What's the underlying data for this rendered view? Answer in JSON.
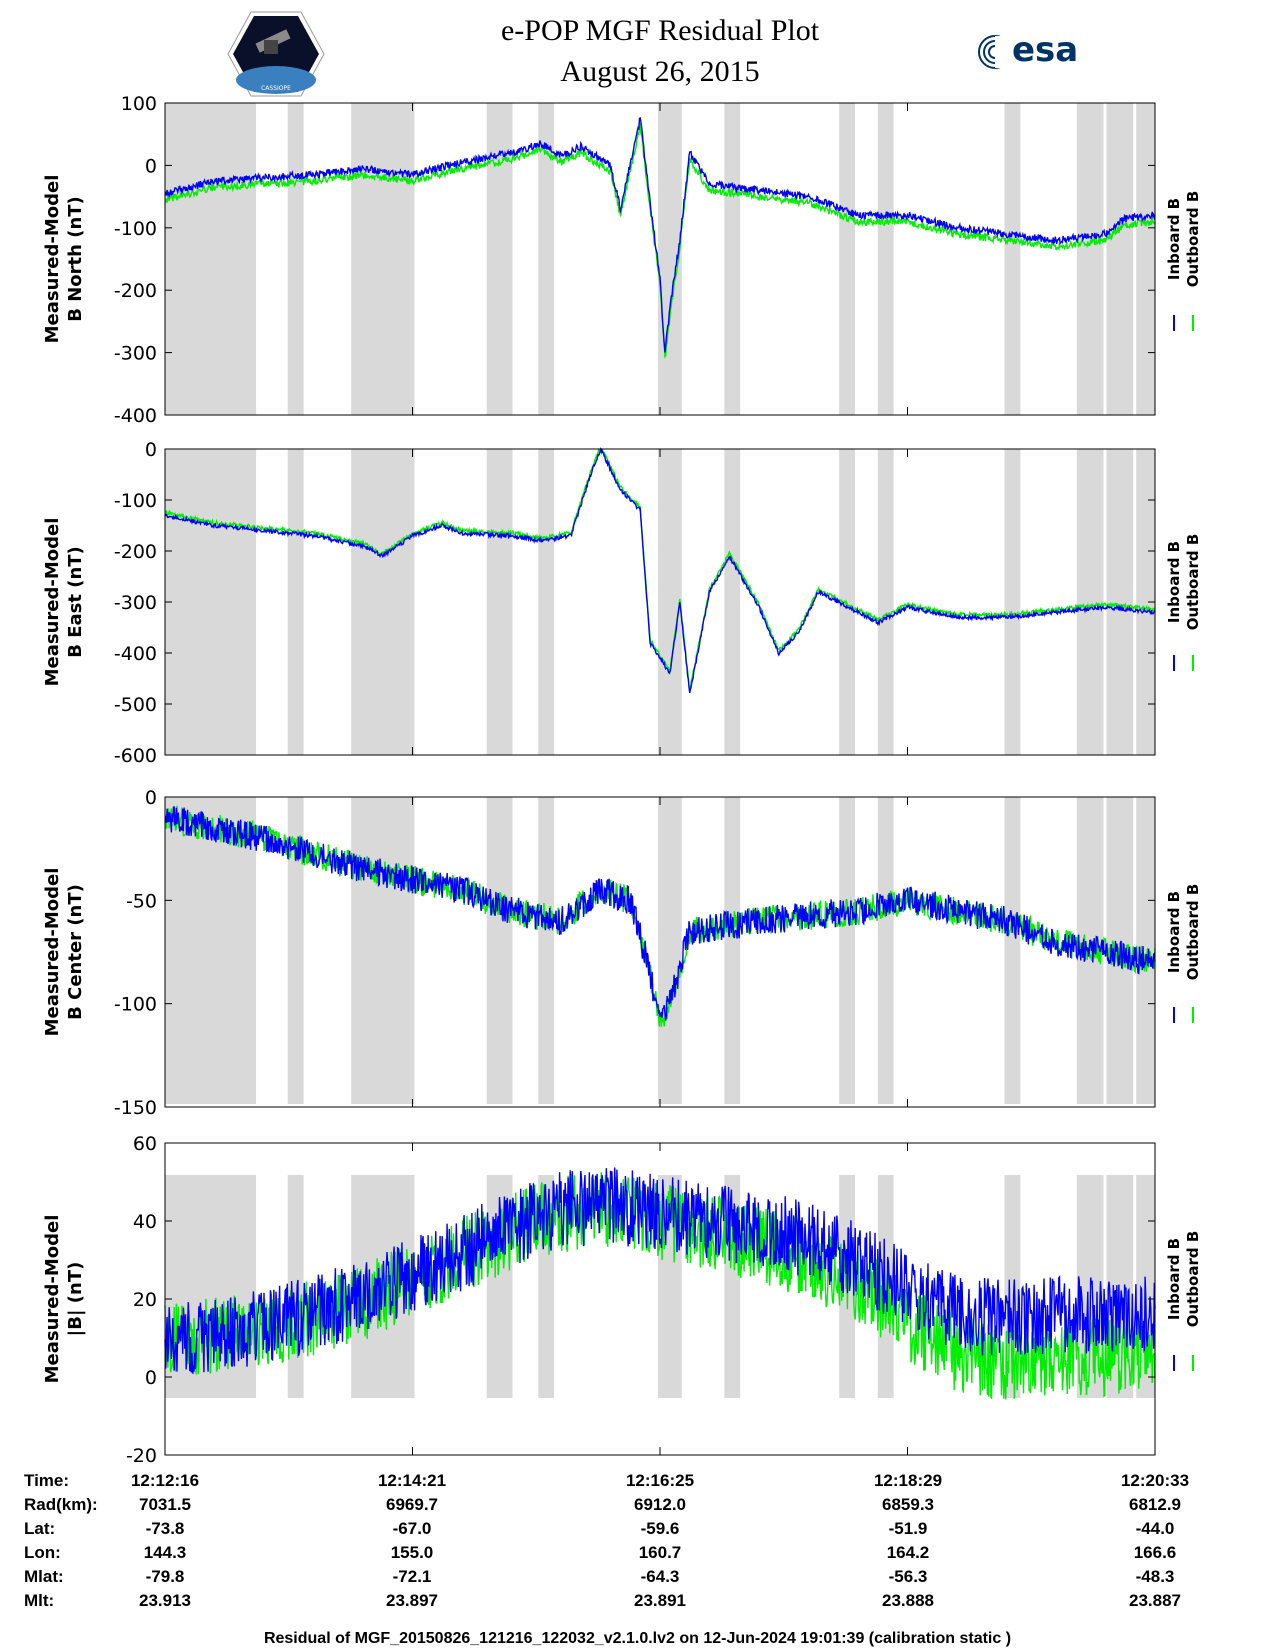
{
  "header": {
    "title_line1": "e-POP MGF Residual Plot",
    "title_line2": "August 26, 2015",
    "left_logo": "cassiope-satellite-logo",
    "left_logo_text": "CASSIOPE",
    "right_logo": "esa-logo",
    "right_logo_text": "esa"
  },
  "colors": {
    "inboard": "#0000ff",
    "outboard": "#00ee00",
    "shade": "#d9d9d9"
  },
  "legend": {
    "inboard": "Inboard B",
    "outboard": "Outboard B"
  },
  "shaded_time_fraction_ranges": [
    [
      0.0,
      0.092
    ],
    [
      0.124,
      0.14
    ],
    [
      0.188,
      0.252
    ],
    [
      0.325,
      0.351
    ],
    [
      0.377,
      0.393
    ],
    [
      0.498,
      0.522
    ],
    [
      0.565,
      0.581
    ],
    [
      0.681,
      0.697
    ],
    [
      0.72,
      0.736
    ],
    [
      0.848,
      0.864
    ],
    [
      0.921,
      0.948
    ],
    [
      0.951,
      0.978
    ],
    [
      0.981,
      1.0
    ]
  ],
  "chart_data": [
    {
      "type": "line",
      "ylabel_line1": "Measured-Model",
      "ylabel_line2": "B North (nT)",
      "ylim": [
        -400,
        100
      ],
      "yticks": [
        "100",
        "0",
        "-100",
        "-200",
        "-300",
        "-400"
      ],
      "x_fraction": [
        0,
        0.05,
        0.1,
        0.15,
        0.2,
        0.25,
        0.3,
        0.35,
        0.38,
        0.4,
        0.42,
        0.45,
        0.46,
        0.48,
        0.49,
        0.5,
        0.505,
        0.51,
        0.52,
        0.53,
        0.55,
        0.6,
        0.65,
        0.7,
        0.75,
        0.8,
        0.85,
        0.9,
        0.95,
        0.97,
        1.0
      ],
      "series": [
        {
          "name": "Inboard B",
          "values": [
            -45,
            -25,
            -20,
            -15,
            -5,
            -15,
            5,
            20,
            35,
            15,
            30,
            0,
            -70,
            75,
            -60,
            -180,
            -300,
            -230,
            -120,
            20,
            -30,
            -40,
            -50,
            -80,
            -80,
            -100,
            -110,
            -120,
            -110,
            -85,
            -80
          ]
        },
        {
          "name": "Outboard B",
          "values": [
            -55,
            -35,
            -30,
            -25,
            -15,
            -25,
            -5,
            10,
            25,
            5,
            20,
            -10,
            -80,
            65,
            -70,
            -190,
            -310,
            -240,
            -130,
            10,
            -40,
            -50,
            -60,
            -90,
            -90,
            -110,
            -120,
            -130,
            -120,
            -95,
            -90
          ]
        }
      ]
    },
    {
      "type": "line",
      "ylabel_line1": "Measured-Model",
      "ylabel_line2": "B East (nT)",
      "ylim": [
        -600,
        0
      ],
      "yticks": [
        "0",
        "-100",
        "-200",
        "-300",
        "-400",
        "-500",
        "-600"
      ],
      "x_fraction": [
        0,
        0.05,
        0.1,
        0.15,
        0.2,
        0.22,
        0.25,
        0.28,
        0.3,
        0.35,
        0.38,
        0.41,
        0.43,
        0.44,
        0.46,
        0.48,
        0.49,
        0.5,
        0.51,
        0.52,
        0.53,
        0.55,
        0.57,
        0.6,
        0.62,
        0.64,
        0.66,
        0.68,
        0.7,
        0.72,
        0.75,
        0.8,
        0.85,
        0.9,
        0.95,
        1.0
      ],
      "series": [
        {
          "name": "Inboard B",
          "values": [
            -130,
            -150,
            -160,
            -170,
            -190,
            -210,
            -170,
            -150,
            -165,
            -170,
            -180,
            -170,
            -50,
            0,
            -80,
            -120,
            -380,
            -410,
            -440,
            -300,
            -480,
            -280,
            -210,
            -310,
            -400,
            -360,
            -280,
            -300,
            -320,
            -340,
            -310,
            -330,
            -330,
            -320,
            -310,
            -320
          ]
        },
        {
          "name": "Outboard B",
          "values": [
            -125,
            -145,
            -155,
            -165,
            -185,
            -205,
            -165,
            -145,
            -160,
            -165,
            -175,
            -165,
            -45,
            5,
            -75,
            -115,
            -375,
            -405,
            -435,
            -295,
            -475,
            -275,
            -205,
            -305,
            -395,
            -355,
            -275,
            -295,
            -315,
            -335,
            -305,
            -325,
            -325,
            -315,
            -305,
            -315
          ]
        }
      ]
    },
    {
      "type": "line",
      "ylabel_line1": "Measured-Model",
      "ylabel_line2": "B Center (nT)",
      "ylim": [
        -150,
        0
      ],
      "yticks": [
        "0",
        "-50",
        "-100",
        "-150"
      ],
      "x_fraction": [
        0,
        0.1,
        0.2,
        0.3,
        0.35,
        0.4,
        0.44,
        0.47,
        0.49,
        0.5,
        0.51,
        0.53,
        0.6,
        0.7,
        0.75,
        0.8,
        0.85,
        0.9,
        0.95,
        1.0
      ],
      "series": [
        {
          "name": "Inboard B",
          "values": [
            -10,
            -20,
            -35,
            -45,
            -55,
            -60,
            -45,
            -50,
            -85,
            -110,
            -100,
            -65,
            -60,
            -55,
            -50,
            -55,
            -60,
            -70,
            -75,
            -80
          ]
        },
        {
          "name": "Outboard B",
          "values": [
            -10,
            -20,
            -35,
            -45,
            -55,
            -60,
            -45,
            -50,
            -85,
            -110,
            -100,
            -65,
            -60,
            -55,
            -50,
            -55,
            -60,
            -70,
            -75,
            -80
          ]
        }
      ]
    },
    {
      "type": "line",
      "ylabel_line1": "Measured-Model",
      "ylabel_line2": "|B| (nT)",
      "ylim": [
        -20,
        60
      ],
      "yticks": [
        "60",
        "40",
        "20",
        "0",
        "-20"
      ],
      "x_fraction": [
        0,
        0.1,
        0.2,
        0.3,
        0.35,
        0.4,
        0.45,
        0.5,
        0.55,
        0.6,
        0.65,
        0.7,
        0.75,
        0.8,
        0.85,
        0.9,
        1.0
      ],
      "series": [
        {
          "name": "Inboard B",
          "values": [
            10,
            13,
            20,
            32,
            38,
            43,
            44,
            42,
            40,
            38,
            35,
            30,
            22,
            16,
            15,
            16,
            16
          ]
        },
        {
          "name": "Outboard B",
          "values": [
            9,
            12,
            19,
            31,
            37,
            42,
            43,
            40,
            37,
            34,
            30,
            24,
            14,
            6,
            4,
            5,
            5
          ]
        }
      ]
    }
  ],
  "info_table": {
    "labels": [
      "Time:",
      "Rad(km):",
      "Lat:",
      "Lon:",
      "Mlat:",
      "Mlt:"
    ],
    "columns": [
      [
        "12:12:16",
        "7031.5",
        "-73.8",
        "144.3",
        "-79.8",
        "23.913"
      ],
      [
        "12:14:21",
        "6969.7",
        "-67.0",
        "155.0",
        "-72.1",
        "23.897"
      ],
      [
        "12:16:25",
        "6912.0",
        "-59.6",
        "160.7",
        "-64.3",
        "23.891"
      ],
      [
        "12:18:29",
        "6859.3",
        "-51.9",
        "164.2",
        "-56.3",
        "23.888"
      ],
      [
        "12:20:33",
        "6812.9",
        "-44.0",
        "166.6",
        "-48.3",
        "23.887"
      ]
    ]
  },
  "footer": "Residual of MGF_20150826_121216_122032_v2.1.0.lv2 on 12-Jun-2024 19:01:39 (calibration static )"
}
